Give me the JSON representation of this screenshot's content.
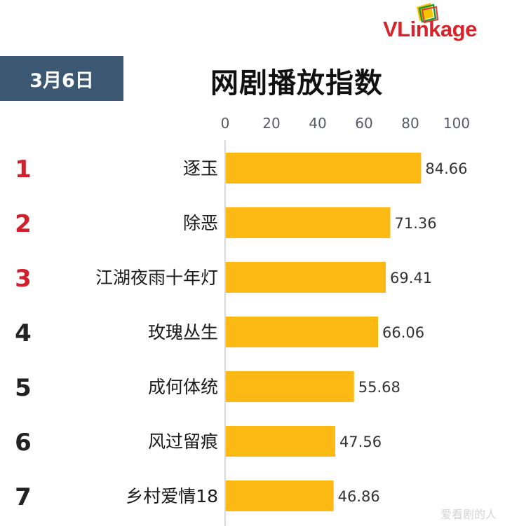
{
  "header": {
    "date": "3月6日",
    "title": "网剧播放指数",
    "logo": "VLinkage",
    "watermark": "爱看剧的人"
  },
  "colors": {
    "bar": "#fdb913",
    "date_box": "#3d5873",
    "top_rank": "#d0202b",
    "rank": "#222222"
  },
  "chart_data": {
    "type": "bar",
    "orientation": "horizontal",
    "title": "网剧播放指数",
    "categories": [
      "逐玉",
      "除恶",
      "江湖夜雨十年灯",
      "玫瑰丛生",
      "成何体统",
      "风过留痕",
      "乡村爱情18"
    ],
    "ranks": [
      "1",
      "2",
      "3",
      "4",
      "5",
      "6",
      "7"
    ],
    "values": [
      84.66,
      71.36,
      69.41,
      66.06,
      55.68,
      47.56,
      46.86
    ],
    "value_labels": [
      "84.66",
      "71.36",
      "69.41",
      "66.06",
      "55.68",
      "47.56",
      "46.86"
    ],
    "xlim": [
      0,
      100
    ],
    "xticks": [
      "0",
      "20",
      "40",
      "60",
      "80",
      "100"
    ],
    "xlabel": "",
    "ylabel": "",
    "grid": false,
    "axis_position": "top"
  }
}
